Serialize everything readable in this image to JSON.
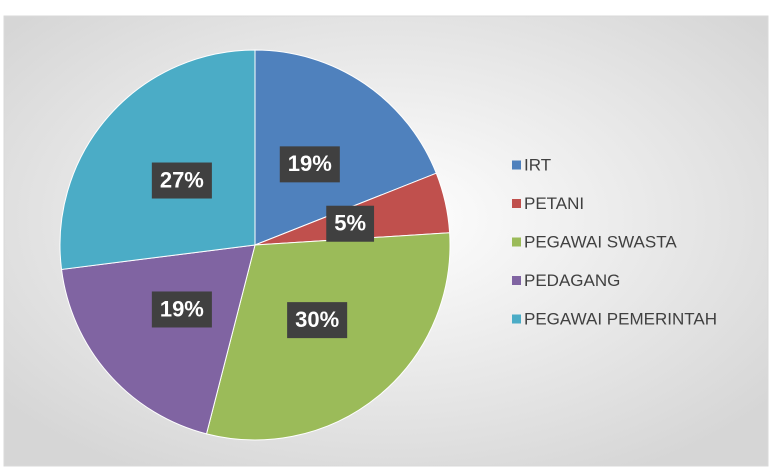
{
  "chart_data": {
    "type": "pie",
    "categories": [
      "IRT",
      "PETANI",
      "PEGAWAI SWASTA",
      "PEDAGANG",
      "PEGAWAI PEMERINTAH"
    ],
    "values": [
      19,
      5,
      30,
      19,
      27
    ],
    "value_labels": [
      "19%",
      "5%",
      "30%",
      "19%",
      "27%"
    ],
    "colors": [
      "#4f81bd",
      "#c0504d",
      "#9bbb59",
      "#8064a2",
      "#4bacc6"
    ],
    "legend": "right"
  }
}
